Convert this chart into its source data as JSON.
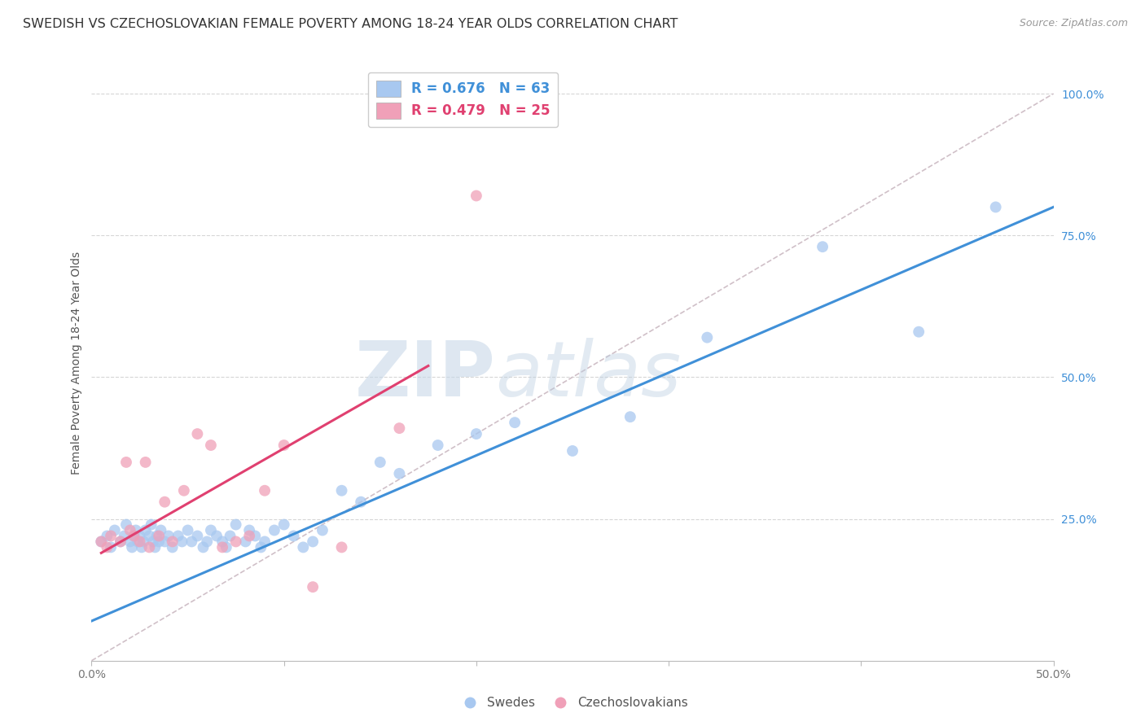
{
  "title": "SWEDISH VS CZECHOSLOVAKIAN FEMALE POVERTY AMONG 18-24 YEAR OLDS CORRELATION CHART",
  "source": "Source: ZipAtlas.com",
  "ylabel": "Female Poverty Among 18-24 Year Olds",
  "xlim": [
    0.0,
    0.5
  ],
  "ylim": [
    0.0,
    1.05
  ],
  "yticks": [
    0.25,
    0.5,
    0.75,
    1.0
  ],
  "ytick_labels": [
    "25.0%",
    "50.0%",
    "75.0%",
    "100.0%"
  ],
  "xticks": [
    0.0,
    0.1,
    0.2,
    0.3,
    0.4,
    0.5
  ],
  "xtick_labels": [
    "0.0%",
    "",
    "",
    "",
    "",
    "50.0%"
  ],
  "legend_blue_label": "R = 0.676   N = 63",
  "legend_pink_label": "R = 0.479   N = 25",
  "swedes_color": "#A8C8F0",
  "czech_color": "#F0A0B8",
  "blue_line_color": "#4090D8",
  "pink_line_color": "#E04070",
  "diag_line_color": "#D0C0C8",
  "watermark_zip": "ZIP",
  "watermark_atlas": "atlas",
  "swedes_x": [
    0.005,
    0.008,
    0.01,
    0.012,
    0.015,
    0.017,
    0.018,
    0.02,
    0.021,
    0.022,
    0.023,
    0.024,
    0.025,
    0.026,
    0.027,
    0.028,
    0.03,
    0.031,
    0.032,
    0.033,
    0.034,
    0.035,
    0.036,
    0.038,
    0.04,
    0.042,
    0.045,
    0.047,
    0.05,
    0.052,
    0.055,
    0.058,
    0.06,
    0.062,
    0.065,
    0.068,
    0.07,
    0.072,
    0.075,
    0.08,
    0.082,
    0.085,
    0.088,
    0.09,
    0.095,
    0.1,
    0.105,
    0.11,
    0.115,
    0.12,
    0.13,
    0.14,
    0.15,
    0.16,
    0.18,
    0.2,
    0.22,
    0.25,
    0.28,
    0.32,
    0.38,
    0.43,
    0.47
  ],
  "swedes_y": [
    0.21,
    0.22,
    0.2,
    0.23,
    0.21,
    0.22,
    0.24,
    0.21,
    0.2,
    0.22,
    0.23,
    0.21,
    0.22,
    0.2,
    0.21,
    0.23,
    0.22,
    0.24,
    0.21,
    0.2,
    0.22,
    0.21,
    0.23,
    0.21,
    0.22,
    0.2,
    0.22,
    0.21,
    0.23,
    0.21,
    0.22,
    0.2,
    0.21,
    0.23,
    0.22,
    0.21,
    0.2,
    0.22,
    0.24,
    0.21,
    0.23,
    0.22,
    0.2,
    0.21,
    0.23,
    0.24,
    0.22,
    0.2,
    0.21,
    0.23,
    0.3,
    0.28,
    0.35,
    0.33,
    0.38,
    0.4,
    0.42,
    0.37,
    0.43,
    0.57,
    0.73,
    0.58,
    0.8
  ],
  "czech_x": [
    0.005,
    0.008,
    0.01,
    0.015,
    0.018,
    0.02,
    0.022,
    0.025,
    0.028,
    0.03,
    0.035,
    0.038,
    0.042,
    0.048,
    0.055,
    0.062,
    0.068,
    0.075,
    0.082,
    0.09,
    0.1,
    0.115,
    0.13,
    0.16,
    0.2
  ],
  "czech_y": [
    0.21,
    0.2,
    0.22,
    0.21,
    0.35,
    0.23,
    0.22,
    0.21,
    0.35,
    0.2,
    0.22,
    0.28,
    0.21,
    0.3,
    0.4,
    0.38,
    0.2,
    0.21,
    0.22,
    0.3,
    0.38,
    0.13,
    0.2,
    0.41,
    0.82
  ],
  "blue_line_x": [
    0.0,
    0.5
  ],
  "blue_line_y": [
    0.07,
    0.8
  ],
  "pink_line_x": [
    0.005,
    0.175
  ],
  "pink_line_y": [
    0.19,
    0.52
  ],
  "diag_line_x": [
    0.0,
    0.5
  ],
  "diag_line_y": [
    0.0,
    1.0
  ],
  "marker_size": 100,
  "title_fontsize": 11.5,
  "label_fontsize": 10,
  "tick_fontsize": 10
}
